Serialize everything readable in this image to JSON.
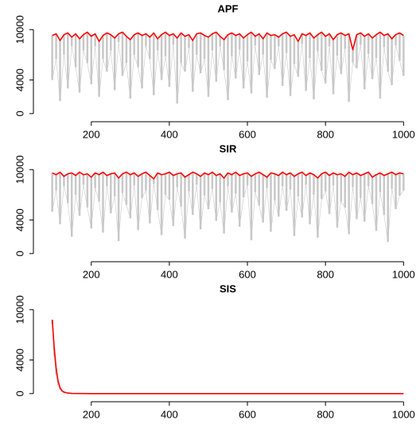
{
  "chart_data": [
    {
      "type": "line",
      "title": "APF",
      "x": [
        100,
        110,
        120,
        130,
        140,
        150,
        160,
        170,
        180,
        190,
        200,
        210,
        220,
        230,
        240,
        250,
        260,
        270,
        280,
        290,
        300,
        310,
        320,
        330,
        340,
        350,
        360,
        370,
        380,
        390,
        400,
        410,
        420,
        430,
        440,
        450,
        460,
        470,
        480,
        490,
        500,
        510,
        520,
        530,
        540,
        550,
        560,
        570,
        580,
        590,
        600,
        610,
        620,
        630,
        640,
        650,
        660,
        670,
        680,
        690,
        700,
        710,
        720,
        730,
        740,
        750,
        760,
        770,
        780,
        790,
        800,
        810,
        820,
        830,
        840,
        850,
        860,
        870,
        880,
        890,
        900,
        910,
        920,
        930,
        940,
        950,
        960,
        970,
        980,
        990,
        1000
      ],
      "series": [
        {
          "color": "#c8c8c8",
          "values": [
            4000,
            6500,
            1500,
            7000,
            3000,
            8000,
            5500,
            2500,
            7500,
            6000,
            3500,
            8000,
            2000,
            6500,
            5000,
            7500,
            2800,
            8500,
            4500,
            6000,
            1800,
            7000,
            5500,
            3000,
            8000,
            6500,
            2200,
            7500,
            4000,
            6800,
            3200,
            8200,
            1200,
            6000,
            5000,
            7800,
            2600,
            7000,
            4800,
            6500,
            2000,
            7500,
            3800,
            8000,
            5200,
            1600,
            6800,
            4200,
            7600,
            3000,
            6200,
            2400,
            8100,
            4600,
            7000,
            1900,
            6400,
            5300,
            8000,
            3300,
            7200,
            2100,
            5900,
            4400,
            8300,
            2700,
            6600,
            1700,
            7400,
            5100,
            3600,
            8000,
            2300,
            6900,
            4700,
            7700,
            1400,
            6100,
            5400,
            8200,
            2900,
            7100,
            4100,
            6600,
            1800,
            7900,
            5000,
            3400,
            8100,
            6300,
            4500
          ]
        },
        {
          "color": "#ff0000",
          "values": [
            9300,
            9500,
            8700,
            9400,
            9600,
            9100,
            9500,
            8900,
            9400,
            9700,
            9200,
            9500,
            8600,
            9300,
            9600,
            9400,
            9000,
            9500,
            9700,
            9200,
            8800,
            9400,
            9600,
            9300,
            9500,
            9100,
            9600,
            8900,
            9400,
            9700,
            9300,
            9500,
            9000,
            9600,
            9200,
            9400,
            8700,
            9500,
            9600,
            9300,
            9100,
            9500,
            9700,
            9200,
            8800,
            9400,
            9600,
            9300,
            9500,
            9000,
            9400,
            9700,
            9200,
            9500,
            8900,
            9600,
            9300,
            9400,
            9100,
            9500,
            9700,
            9200,
            9400,
            8600,
            9500,
            9300,
            9600,
            9000,
            9400,
            9700,
            9200,
            9500,
            8800,
            9400,
            9600,
            9300,
            9500,
            7600,
            9400,
            9600,
            9200,
            9500,
            9000,
            9400,
            9700,
            9300,
            9500,
            8900,
            9400,
            9600,
            9300
          ]
        }
      ],
      "xlim": [
        64,
        1036
      ],
      "ylim": [
        -400,
        10400
      ],
      "xticks": [
        200,
        400,
        600,
        800,
        1000
      ],
      "yticks": [
        0,
        4000,
        10000
      ]
    },
    {
      "type": "line",
      "title": "SIR",
      "x": [
        100,
        110,
        120,
        130,
        140,
        150,
        160,
        170,
        180,
        190,
        200,
        210,
        220,
        230,
        240,
        250,
        260,
        270,
        280,
        290,
        300,
        310,
        320,
        330,
        340,
        350,
        360,
        370,
        380,
        390,
        400,
        410,
        420,
        430,
        440,
        450,
        460,
        470,
        480,
        490,
        500,
        510,
        520,
        530,
        540,
        550,
        560,
        570,
        580,
        590,
        600,
        610,
        620,
        630,
        640,
        650,
        660,
        670,
        680,
        690,
        700,
        710,
        720,
        730,
        740,
        750,
        760,
        770,
        780,
        790,
        800,
        810,
        820,
        830,
        840,
        850,
        860,
        870,
        880,
        890,
        900,
        910,
        920,
        930,
        940,
        950,
        960,
        970,
        980,
        990,
        1000
      ],
      "series": [
        {
          "color": "#c8c8c8",
          "values": [
            5000,
            7500,
            3500,
            8000,
            6000,
            2000,
            7000,
            4500,
            8200,
            5500,
            3000,
            7800,
            6200,
            2500,
            8000,
            4800,
            6800,
            1500,
            7200,
            5800,
            4200,
            8100,
            2800,
            6600,
            7500,
            3600,
            8300,
            5200,
            2200,
            7000,
            6400,
            3300,
            7900,
            5600,
            1800,
            7400,
            4600,
            8200,
            2900,
            6900,
            5300,
            7700,
            3900,
            6100,
            2400,
            8000,
            4900,
            7100,
            3200,
            6700,
            8100,
            1600,
            7300,
            5700,
            3700,
            7800,
            2600,
            6300,
            4400,
            8000,
            5100,
            7600,
            2100,
            6800,
            4300,
            8200,
            3500,
            7000,
            1900,
            6500,
            7400,
            4700,
            8100,
            3100,
            6200,
            5500,
            2300,
            7900,
            4100,
            6600,
            3800,
            8000,
            5900,
            2700,
            7300,
            4600,
            1400,
            7700,
            5300,
            6900,
            7500
          ]
        },
        {
          "color": "#ff0000",
          "values": [
            9600,
            9400,
            9700,
            9200,
            9500,
            9600,
            9300,
            9700,
            9400,
            9500,
            9100,
            9600,
            9400,
            9700,
            9300,
            9500,
            9600,
            9000,
            9500,
            9700,
            9400,
            9600,
            9200,
            9500,
            9700,
            9300,
            8900,
            9600,
            9400,
            9500,
            9700,
            9300,
            9500,
            9600,
            9100,
            9400,
            9700,
            9500,
            9200,
            9600,
            9400,
            9700,
            9300,
            9500,
            9000,
            9600,
            9400,
            9700,
            9300,
            9500,
            9600,
            9200,
            9500,
            9700,
            9400,
            9100,
            9600,
            9500,
            9300,
            9700,
            9400,
            9600,
            9200,
            9500,
            9700,
            9300,
            9600,
            9400,
            9000,
            9500,
            9700,
            9300,
            9600,
            9400,
            9500,
            9200,
            9700,
            9400,
            9600,
            9300,
            9500,
            9700,
            9100,
            9400,
            9600,
            9300,
            9500,
            9700,
            9400,
            9600,
            9500
          ]
        }
      ],
      "xlim": [
        64,
        1036
      ],
      "ylim": [
        -400,
        10400
      ],
      "xticks": [
        200,
        400,
        600,
        800,
        1000
      ],
      "yticks": [
        0,
        4000,
        10000
      ]
    },
    {
      "type": "line",
      "title": "SIS",
      "x": [
        100,
        105,
        110,
        115,
        120,
        125,
        130,
        140,
        150,
        175,
        200,
        300,
        400,
        500,
        600,
        700,
        800,
        900,
        1000
      ],
      "series": [
        {
          "color": "#c8c8c8",
          "values": [
            8300,
            4500,
            2200,
            1000,
            450,
            200,
            100,
            30,
            10,
            2,
            0,
            0,
            0,
            0,
            0,
            0,
            0,
            0,
            0
          ]
        },
        {
          "color": "#ff0000",
          "values": [
            8800,
            5500,
            3000,
            1500,
            700,
            350,
            180,
            60,
            20,
            5,
            0,
            0,
            0,
            0,
            0,
            0,
            0,
            0,
            0
          ]
        }
      ],
      "xlim": [
        64,
        1036
      ],
      "ylim": [
        -400,
        10400
      ],
      "xticks": [
        200,
        400,
        600,
        800,
        1000
      ],
      "yticks": [
        0,
        4000,
        10000
      ]
    }
  ]
}
